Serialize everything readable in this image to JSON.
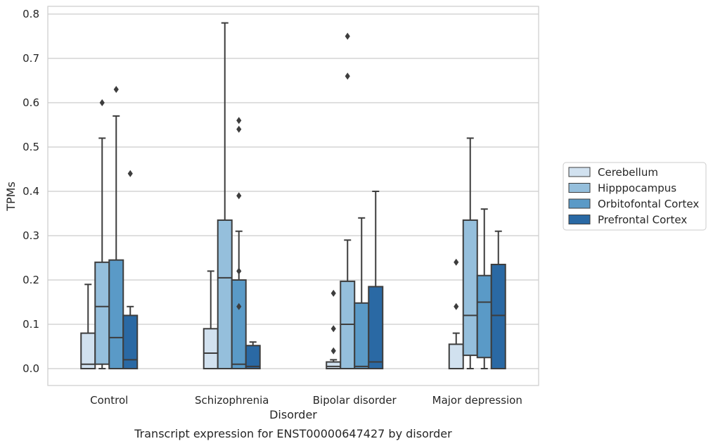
{
  "chart_data": {
    "type": "box",
    "caption": "Transcript expression for ENST00000647427 by disorder",
    "xlabel": "Disorder",
    "ylabel": "TPMs",
    "ylim": [
      -0.04,
      0.82
    ],
    "yticks": [
      "0.0",
      "0.1",
      "0.2",
      "0.3",
      "0.4",
      "0.5",
      "0.6",
      "0.7",
      "0.8"
    ],
    "grid": "horizontal",
    "legend_position": "right",
    "categories": [
      "Control",
      "Schizophrenia",
      "Bipolar disorder",
      "Major depression"
    ],
    "series": [
      {
        "name": "Cerebellum",
        "color": "#d1e1ef",
        "boxes": [
          {
            "min": 0.0,
            "q1": 0.0,
            "median": 0.01,
            "q3": 0.08,
            "max": 0.19,
            "outliers": []
          },
          {
            "min": 0.0,
            "q1": 0.0,
            "median": 0.035,
            "q3": 0.09,
            "max": 0.22,
            "outliers": []
          },
          {
            "min": 0.0,
            "q1": 0.0,
            "median": 0.005,
            "q3": 0.015,
            "max": 0.02,
            "outliers": [
              0.04,
              0.09,
              0.17
            ]
          },
          {
            "min": 0.0,
            "q1": 0.0,
            "median": 0.0,
            "q3": 0.055,
            "max": 0.08,
            "outliers": [
              0.14,
              0.24
            ]
          }
        ]
      },
      {
        "name": "Hipppocampus",
        "color": "#95bfdc",
        "boxes": [
          {
            "min": 0.0,
            "q1": 0.01,
            "median": 0.14,
            "q3": 0.24,
            "max": 0.52,
            "outliers": [
              0.6
            ]
          },
          {
            "min": 0.0,
            "q1": 0.0,
            "median": 0.205,
            "q3": 0.335,
            "max": 0.78,
            "outliers": []
          },
          {
            "min": 0.0,
            "q1": 0.0,
            "median": 0.1,
            "q3": 0.197,
            "max": 0.29,
            "outliers": [
              0.66,
              0.75
            ]
          },
          {
            "min": 0.0,
            "q1": 0.03,
            "median": 0.12,
            "q3": 0.335,
            "max": 0.52,
            "outliers": []
          }
        ]
      },
      {
        "name": "Orbitofontal Cortex",
        "color": "#5a9ac7",
        "boxes": [
          {
            "min": 0.0,
            "q1": 0.0,
            "median": 0.07,
            "q3": 0.245,
            "max": 0.57,
            "outliers": [
              0.63
            ]
          },
          {
            "min": 0.0,
            "q1": 0.0,
            "median": 0.01,
            "q3": 0.2,
            "max": 0.31,
            "outliers": [
              0.14,
              0.22,
              0.39,
              0.54,
              0.56
            ]
          },
          {
            "min": 0.0,
            "q1": 0.0,
            "median": 0.005,
            "q3": 0.148,
            "max": 0.34,
            "outliers": []
          },
          {
            "min": 0.0,
            "q1": 0.025,
            "median": 0.15,
            "q3": 0.21,
            "max": 0.36,
            "outliers": []
          }
        ]
      },
      {
        "name": "Prefrontal Cortex",
        "color": "#2a69a4",
        "boxes": [
          {
            "min": 0.0,
            "q1": 0.0,
            "median": 0.02,
            "q3": 0.12,
            "max": 0.14,
            "outliers": [
              0.44
            ]
          },
          {
            "min": 0.0,
            "q1": 0.0,
            "median": 0.005,
            "q3": 0.052,
            "max": 0.06,
            "outliers": []
          },
          {
            "min": 0.0,
            "q1": 0.0,
            "median": 0.015,
            "q3": 0.185,
            "max": 0.4,
            "outliers": []
          },
          {
            "min": 0.0,
            "q1": 0.0,
            "median": 0.12,
            "q3": 0.235,
            "max": 0.31,
            "outliers": []
          }
        ]
      }
    ]
  }
}
